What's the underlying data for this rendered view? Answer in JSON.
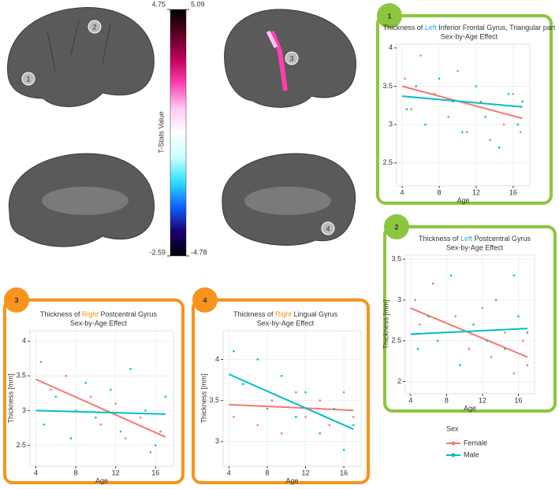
{
  "brain_markers": [
    "1",
    "2",
    "3",
    "4"
  ],
  "colorbar": {
    "label": "T-Stats Value",
    "left_ticks": [
      4.75,
      -2.59
    ],
    "right_ticks": [
      5.09,
      -4.78
    ],
    "colors": [
      "#000000",
      "#5a0020",
      "#c0005a",
      "#ff3fb0",
      "#ffc8f0",
      "#ffffff",
      "#c8ffff",
      "#30e0ff",
      "#1060ff",
      "#1a0070",
      "#000000"
    ]
  },
  "legend": {
    "title": "Sex"
  },
  "chart_data": [
    {
      "type": "scatter",
      "badge": "1",
      "frame_color": "#8cc63f",
      "title_prefix": "Thickness of ",
      "title_side": "Left",
      "title_highlight_color": "#29abe2",
      "title_rest": " Inferior Frontal Gyrus, Triangular part",
      "subtitle": "Sex-by-Age Effect",
      "xlabel": "Age",
      "xlim": [
        3.4,
        17.8
      ],
      "ylim": [
        2.2,
        4.05
      ],
      "xticks": [
        4,
        8,
        12,
        16
      ],
      "yticks": [
        2.5,
        3.0,
        3.5,
        4.0
      ],
      "grid": true,
      "series": [
        {
          "name": "Female",
          "color": "#f8766d",
          "x": [
            4.3,
            5,
            6,
            7.5,
            9,
            10,
            11,
            12.5,
            13.5,
            15,
            16,
            16.8
          ],
          "values": [
            3.6,
            3.2,
            3.9,
            3.4,
            3.1,
            3.7,
            2.9,
            3.3,
            2.8,
            3.0,
            3.4,
            2.9
          ],
          "fit_x": [
            4,
            17
          ],
          "fit_values": [
            3.5,
            3.08
          ]
        },
        {
          "name": "Male",
          "color": "#00bfc4",
          "x": [
            4.5,
            5.5,
            6.5,
            8,
            9.5,
            10.5,
            12,
            13,
            14.5,
            15.5,
            16.5,
            17
          ],
          "values": [
            3.2,
            3.5,
            3.0,
            3.6,
            3.3,
            2.9,
            3.5,
            3.1,
            2.7,
            3.4,
            3.0,
            3.3
          ],
          "fit_x": [
            4,
            17
          ],
          "fit_values": [
            3.37,
            3.23
          ]
        }
      ]
    },
    {
      "type": "scatter",
      "badge": "2",
      "frame_color": "#8cc63f",
      "title_prefix": "Thickness of ",
      "title_side": "Left",
      "title_highlight_color": "#29abe2",
      "title_rest": " Postcentral Gyrus",
      "subtitle": "Sex-by-Age Effect",
      "xlabel": "Age",
      "ylabel": "Thickness [mm]",
      "xlim": [
        3.4,
        17.8
      ],
      "ylim": [
        1.85,
        3.55
      ],
      "xticks": [
        4,
        8,
        12,
        16
      ],
      "yticks": [
        2.0,
        2.5,
        3.0,
        3.5
      ],
      "grid": true,
      "series": [
        {
          "name": "Female",
          "color": "#f8766d",
          "x": [
            4.5,
            5,
            6.5,
            7.5,
            9,
            10.5,
            12,
            13,
            14.5,
            15.5,
            16.5,
            17
          ],
          "values": [
            3.0,
            2.7,
            3.2,
            2.6,
            2.8,
            2.4,
            2.9,
            2.3,
            2.6,
            2.1,
            2.5,
            2.2
          ],
          "fit_x": [
            4,
            17
          ],
          "fit_values": [
            2.9,
            2.3
          ]
        },
        {
          "name": "Male",
          "color": "#00bfc4",
          "x": [
            4.8,
            6,
            7,
            8.5,
            9.5,
            11,
            12.5,
            13.5,
            14.5,
            15.5,
            16,
            17
          ],
          "values": [
            2.4,
            2.8,
            2.5,
            3.3,
            2.2,
            2.7,
            2.5,
            3.0,
            2.4,
            3.3,
            2.8,
            2.6
          ],
          "fit_x": [
            4,
            17
          ],
          "fit_values": [
            2.58,
            2.65
          ]
        }
      ]
    },
    {
      "type": "scatter",
      "badge": "3",
      "frame_color": "#f7941d",
      "title_prefix": "Thickness of ",
      "title_side": "Right",
      "title_highlight_color": "#f7941d",
      "title_rest": " Postcentral Gyrus",
      "subtitle": "Sex-by-Age Effect",
      "xlabel": "Age",
      "ylabel": "Thickness [mm]",
      "xlim": [
        3.4,
        17.8
      ],
      "ylim": [
        2.2,
        4.15
      ],
      "xticks": [
        4,
        8,
        12,
        16
      ],
      "yticks": [
        2.5,
        3.0,
        3.5,
        4.0
      ],
      "grid": true,
      "series": [
        {
          "name": "Female",
          "color": "#f8766d",
          "x": [
            4.5,
            5.5,
            7,
            8,
            9.5,
            10.5,
            12,
            13,
            14.5,
            15.5,
            16.5
          ],
          "values": [
            3.7,
            3.3,
            3.5,
            3.0,
            3.2,
            2.8,
            3.1,
            2.6,
            2.9,
            2.4,
            2.7
          ],
          "fit_x": [
            4,
            17
          ],
          "fit_values": [
            3.45,
            2.62
          ]
        },
        {
          "name": "Male",
          "color": "#00bfc4",
          "x": [
            4.8,
            6,
            7.5,
            9,
            10,
            11.5,
            12.5,
            13.5,
            15,
            16,
            17
          ],
          "values": [
            2.8,
            3.2,
            2.6,
            3.4,
            2.9,
            3.3,
            2.7,
            3.6,
            3.0,
            2.5,
            3.2
          ],
          "fit_x": [
            4,
            17
          ],
          "fit_values": [
            3.0,
            2.95
          ]
        }
      ]
    },
    {
      "type": "scatter",
      "badge": "4",
      "frame_color": "#f7941d",
      "title_prefix": "Thickness of ",
      "title_side": "Right",
      "title_highlight_color": "#f7941d",
      "title_rest": " Lingual Gyrus",
      "subtitle": "Sex-by-Age Effect",
      "xlabel": "Age",
      "ylabel": "Thickness [mm]",
      "xlim": [
        3.4,
        17.8
      ],
      "ylim": [
        2.7,
        4.35
      ],
      "xticks": [
        4,
        8,
        12,
        16
      ],
      "yticks": [
        3.0,
        3.5,
        4.0
      ],
      "grid": true,
      "series": [
        {
          "name": "Female",
          "color": "#f8766d",
          "x": [
            4.5,
            5.5,
            7,
            8.5,
            9.5,
            11,
            12,
            13.5,
            14.5,
            16,
            17
          ],
          "values": [
            3.3,
            3.7,
            3.2,
            3.5,
            3.1,
            3.6,
            3.3,
            3.5,
            3.2,
            3.6,
            3.3
          ],
          "fit_x": [
            4,
            17
          ],
          "fit_values": [
            3.45,
            3.38
          ]
        },
        {
          "name": "Male",
          "color": "#00bfc4",
          "x": [
            4.5,
            5.5,
            7,
            8,
            9.5,
            11,
            12,
            13.5,
            15,
            16,
            17
          ],
          "values": [
            4.1,
            3.7,
            4.0,
            3.4,
            3.8,
            3.3,
            3.6,
            3.1,
            3.4,
            2.9,
            3.2
          ],
          "fit_x": [
            4,
            17
          ],
          "fit_values": [
            3.82,
            3.15
          ]
        }
      ]
    }
  ]
}
